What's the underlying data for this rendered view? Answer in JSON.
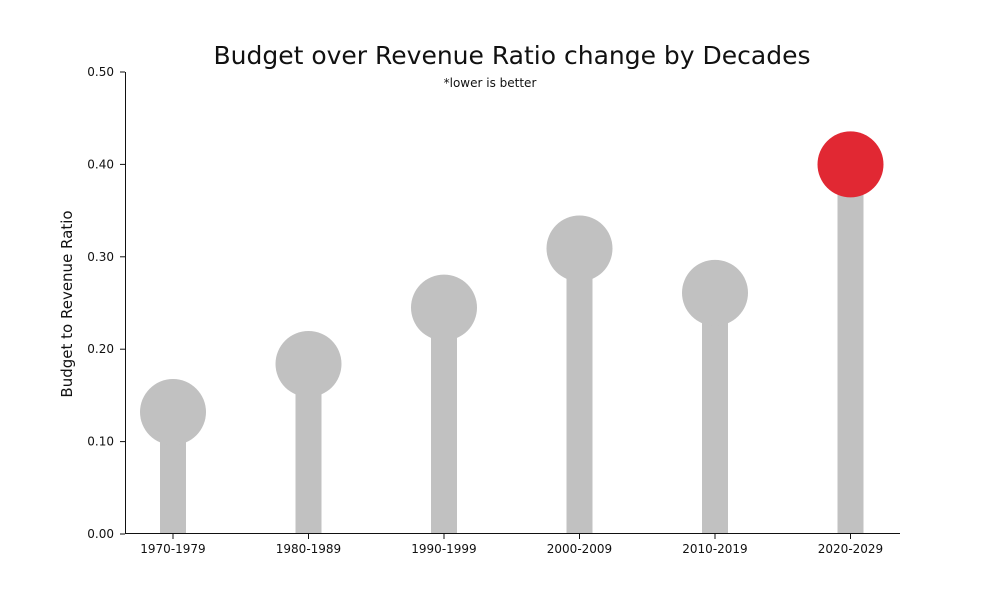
{
  "chart_data": {
    "type": "lollipop",
    "title": "Budget over Revenue Ratio change by Decades",
    "subtitle": "*lower is better",
    "xlabel": "",
    "ylabel": "Budget to Revenue Ratio",
    "ylim": [
      0,
      0.5
    ],
    "yticks": [
      "0.00",
      "0.10",
      "0.20",
      "0.30",
      "0.40",
      "0.50"
    ],
    "categories": [
      "1970-1979",
      "1980-1989",
      "1990-1999",
      "2000-2009",
      "2010-2019",
      "2020-2029"
    ],
    "values": [
      0.132,
      0.184,
      0.245,
      0.309,
      0.261,
      0.4
    ],
    "highlight_index": 5,
    "grid": false,
    "colors": {
      "default": "#c1c1c1",
      "highlight": "#e12833",
      "axis": "#111111"
    }
  }
}
